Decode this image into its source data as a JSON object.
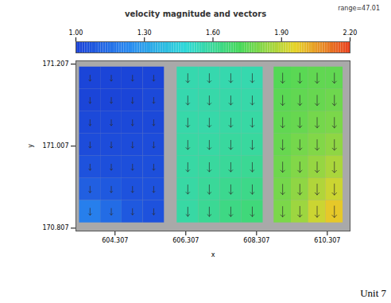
{
  "chart_data": {
    "type": "heatmap",
    "title": "velocity magnitude and vectors",
    "annotation": "range=47.01",
    "footer": "Unit 7",
    "x_label": "x",
    "y_label": "y",
    "xlim": [
      603.2,
      610.95
    ],
    "ylim": [
      170.8,
      171.215
    ],
    "xticks": [
      604.307,
      606.307,
      608.307,
      610.307
    ],
    "yticks": [
      170.807,
      171.007,
      171.207
    ],
    "colorbar": {
      "range": [
        1.0,
        2.2
      ],
      "ticks": [
        {
          "value": 1.0,
          "label": "1.00"
        },
        {
          "value": 1.3,
          "label": "1.30"
        },
        {
          "value": 1.6,
          "label": "1.60"
        },
        {
          "value": 1.9,
          "label": "1.90"
        },
        {
          "value": 2.2,
          "label": "2.20"
        }
      ]
    },
    "panels": [
      {
        "xlim": [
          603.3,
          605.7
        ],
        "ylim": [
          170.82,
          171.2
        ],
        "values": [
          [
            1.02,
            1.02,
            1.02,
            1.02
          ],
          [
            1.02,
            1.02,
            1.02,
            1.03
          ],
          [
            1.03,
            1.03,
            1.03,
            1.03
          ],
          [
            1.04,
            1.04,
            1.04,
            1.04
          ],
          [
            1.06,
            1.05,
            1.05,
            1.05
          ],
          [
            1.1,
            1.08,
            1.06,
            1.06
          ],
          [
            1.2,
            1.14,
            1.08,
            1.06
          ]
        ]
      },
      {
        "xlim": [
          606.06,
          608.49
        ],
        "ylim": [
          170.82,
          171.2
        ],
        "values": [
          [
            1.56,
            1.56,
            1.56,
            1.56
          ],
          [
            1.56,
            1.57,
            1.57,
            1.57
          ],
          [
            1.57,
            1.57,
            1.58,
            1.58
          ],
          [
            1.58,
            1.58,
            1.59,
            1.59
          ],
          [
            1.58,
            1.59,
            1.6,
            1.61
          ],
          [
            1.58,
            1.6,
            1.62,
            1.63
          ],
          [
            1.58,
            1.61,
            1.64,
            1.66
          ]
        ]
      },
      {
        "xlim": [
          608.8,
          610.75
        ],
        "ylim": [
          170.82,
          171.2
        ],
        "values": [
          [
            1.74,
            1.75,
            1.76,
            1.76
          ],
          [
            1.75,
            1.76,
            1.77,
            1.78
          ],
          [
            1.76,
            1.77,
            1.79,
            1.8
          ],
          [
            1.77,
            1.79,
            1.81,
            1.83
          ],
          [
            1.78,
            1.81,
            1.84,
            1.87
          ],
          [
            1.79,
            1.83,
            1.88,
            1.92
          ],
          [
            1.8,
            1.85,
            1.92,
            1.98
          ]
        ]
      }
    ]
  }
}
